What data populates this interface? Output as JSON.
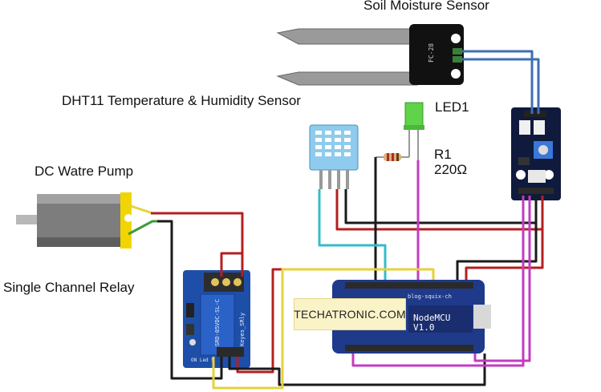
{
  "labels": {
    "soil_sensor": "Soil Moisture Sensor",
    "dht11": "DHT11 Temperature & Humidity Sensor",
    "led": "LED1",
    "resistor_name": "R1",
    "resistor_value": "220Ω",
    "pump": "DC Watre Pump",
    "relay": "Single Channel Relay"
  },
  "watermark": "TECHATRONIC.COM",
  "board": {
    "name_line1": "NodeMCU",
    "name_line2": "V1.0",
    "url": "blog-squix-ch"
  },
  "soil_probe": {
    "model": "FC-28"
  },
  "relay_module": {
    "model": "SRD-05VDC-SL-C",
    "brand": "Keyes_SRly",
    "header": "ON Led S"
  },
  "colors": {
    "wire_red": "#b51f1f",
    "wire_black": "#1a1a1a",
    "wire_blue": "#3d6fb4",
    "wire_cyan": "#34bccb",
    "wire_magenta": "#c23cc0",
    "wire_yellow": "#e6d23a",
    "wire_green": "#3f9a3a",
    "board_blue": "#1f3a8a",
    "relay_blue": "#1e4fa8"
  }
}
